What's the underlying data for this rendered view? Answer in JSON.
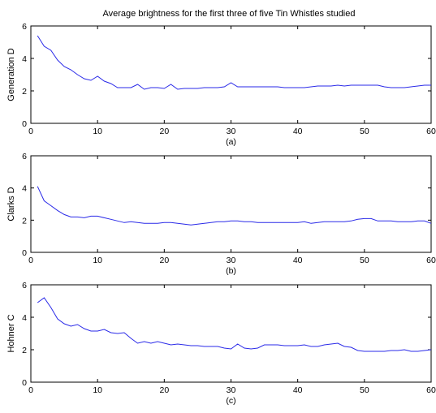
{
  "title": "Average brightness for the first three of five Tin Whistles studied",
  "colors": {
    "series": "#2a2ae8",
    "axes": "#000000",
    "background": "#ffffff"
  },
  "chart_data": [
    {
      "type": "line",
      "ylabel": "Generation D",
      "xlabel": "(a)",
      "xlim": [
        0,
        60
      ],
      "ylim": [
        0,
        6
      ],
      "xticks": [
        0,
        10,
        20,
        30,
        40,
        50,
        60
      ],
      "yticks": [
        0,
        2,
        4,
        6
      ],
      "grid": false,
      "series": [
        {
          "x": [
            1,
            2,
            3,
            4,
            5,
            6,
            7,
            8,
            9,
            10,
            11,
            12,
            13,
            14,
            15,
            16,
            17,
            18,
            19,
            20,
            21,
            22,
            23,
            24,
            25,
            26,
            27,
            28,
            29,
            30,
            31,
            32,
            33,
            34,
            35,
            36,
            37,
            38,
            39,
            40,
            41,
            42,
            43,
            44,
            45,
            46,
            47,
            48,
            49,
            50,
            51,
            52,
            53,
            54,
            55,
            56,
            57,
            58,
            59,
            60
          ],
          "y": [
            5.4,
            4.75,
            4.5,
            3.9,
            3.5,
            3.3,
            3.0,
            2.75,
            2.65,
            2.9,
            2.6,
            2.45,
            2.2,
            2.2,
            2.2,
            2.4,
            2.1,
            2.2,
            2.2,
            2.15,
            2.4,
            2.1,
            2.15,
            2.15,
            2.15,
            2.2,
            2.2,
            2.2,
            2.25,
            2.5,
            2.25,
            2.25,
            2.25,
            2.25,
            2.25,
            2.25,
            2.25,
            2.2,
            2.2,
            2.2,
            2.2,
            2.25,
            2.3,
            2.3,
            2.3,
            2.35,
            2.3,
            2.35,
            2.35,
            2.35,
            2.35,
            2.35,
            2.25,
            2.2,
            2.2,
            2.2,
            2.25,
            2.3,
            2.35,
            2.35
          ]
        }
      ]
    },
    {
      "type": "line",
      "ylabel": "Clarks D",
      "xlabel": "(b)",
      "xlim": [
        0,
        60
      ],
      "ylim": [
        0,
        6
      ],
      "xticks": [
        0,
        10,
        20,
        30,
        40,
        50,
        60
      ],
      "yticks": [
        0,
        2,
        4,
        6
      ],
      "grid": false,
      "series": [
        {
          "x": [
            1,
            2,
            3,
            4,
            5,
            6,
            7,
            8,
            9,
            10,
            11,
            12,
            13,
            14,
            15,
            16,
            17,
            18,
            19,
            20,
            21,
            22,
            23,
            24,
            25,
            26,
            27,
            28,
            29,
            30,
            31,
            32,
            33,
            34,
            35,
            36,
            37,
            38,
            39,
            40,
            41,
            42,
            43,
            44,
            45,
            46,
            47,
            48,
            49,
            50,
            51,
            52,
            53,
            54,
            55,
            56,
            57,
            58,
            59,
            60
          ],
          "y": [
            4.1,
            3.2,
            2.9,
            2.6,
            2.35,
            2.2,
            2.2,
            2.15,
            2.25,
            2.25,
            2.15,
            2.05,
            1.95,
            1.85,
            1.9,
            1.85,
            1.8,
            1.8,
            1.8,
            1.85,
            1.85,
            1.8,
            1.75,
            1.7,
            1.75,
            1.8,
            1.85,
            1.9,
            1.9,
            1.95,
            1.95,
            1.9,
            1.9,
            1.85,
            1.85,
            1.85,
            1.85,
            1.85,
            1.85,
            1.85,
            1.9,
            1.8,
            1.85,
            1.9,
            1.9,
            1.9,
            1.9,
            1.95,
            2.05,
            2.1,
            2.1,
            1.95,
            1.95,
            1.95,
            1.9,
            1.9,
            1.9,
            1.95,
            1.95,
            1.8
          ]
        }
      ]
    },
    {
      "type": "line",
      "ylabel": "Hohner C",
      "xlabel": "(c)",
      "xlim": [
        0,
        60
      ],
      "ylim": [
        0,
        6
      ],
      "xticks": [
        0,
        10,
        20,
        30,
        40,
        50,
        60
      ],
      "yticks": [
        0,
        2,
        4,
        6
      ],
      "grid": false,
      "series": [
        {
          "x": [
            1,
            2,
            3,
            4,
            5,
            6,
            7,
            8,
            9,
            10,
            11,
            12,
            13,
            14,
            15,
            16,
            17,
            18,
            19,
            20,
            21,
            22,
            23,
            24,
            25,
            26,
            27,
            28,
            29,
            30,
            31,
            32,
            33,
            34,
            35,
            36,
            37,
            38,
            39,
            40,
            41,
            42,
            43,
            44,
            45,
            46,
            47,
            48,
            49,
            50,
            51,
            52,
            53,
            54,
            55,
            56,
            57,
            58,
            59,
            60
          ],
          "y": [
            4.9,
            5.2,
            4.6,
            3.9,
            3.6,
            3.45,
            3.55,
            3.3,
            3.15,
            3.15,
            3.25,
            3.05,
            3.0,
            3.05,
            2.7,
            2.4,
            2.5,
            2.4,
            2.5,
            2.4,
            2.3,
            2.35,
            2.3,
            2.25,
            2.25,
            2.2,
            2.2,
            2.2,
            2.1,
            2.05,
            2.35,
            2.1,
            2.05,
            2.1,
            2.3,
            2.3,
            2.3,
            2.25,
            2.25,
            2.25,
            2.3,
            2.2,
            2.2,
            2.3,
            2.35,
            2.4,
            2.2,
            2.15,
            1.95,
            1.9,
            1.9,
            1.9,
            1.9,
            1.95,
            1.95,
            2.0,
            1.9,
            1.9,
            1.95,
            2.0
          ]
        }
      ]
    }
  ]
}
